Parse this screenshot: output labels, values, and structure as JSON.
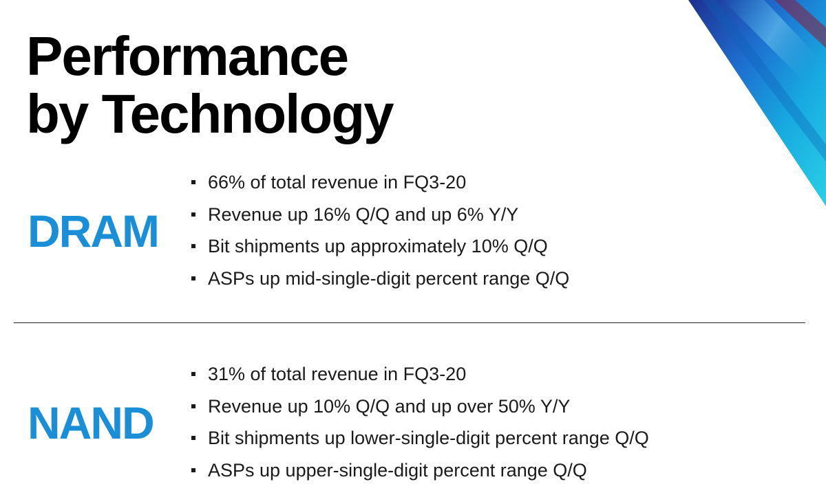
{
  "slide": {
    "title_line1": "Performance",
    "title_line2": "by Technology",
    "accent_color": "#1a8fd8"
  },
  "sections": [
    {
      "label": "DRAM",
      "bullets": [
        "66% of total revenue in FQ3-20",
        "Revenue up 16% Q/Q and up 6% Y/Y",
        "Bit shipments up approximately 10% Q/Q",
        "ASPs up mid-single-digit percent range Q/Q"
      ]
    },
    {
      "label": "NAND",
      "bullets": [
        "31% of total revenue in FQ3-20",
        "Revenue up 10% Q/Q and up over 50% Y/Y",
        "Bit shipments up lower-single-digit percent range Q/Q",
        "ASPs up upper-single-digit percent range Q/Q"
      ]
    }
  ]
}
